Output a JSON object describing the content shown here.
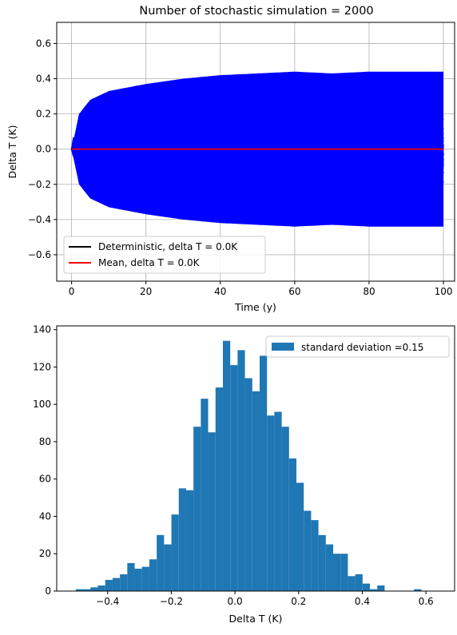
{
  "chart_data": [
    {
      "type": "line",
      "title": "Number of stochastic simulation = 2000",
      "xlabel": "Time (y)",
      "ylabel": "Delta T (K)",
      "xlim": [
        -4,
        103
      ],
      "ylim": [
        -0.75,
        0.72
      ],
      "xticks": [
        0,
        20,
        40,
        60,
        80,
        100
      ],
      "yticks": [
        -0.6,
        -0.4,
        -0.2,
        0.0,
        0.2,
        0.4,
        0.6
      ],
      "xtick_labels": [
        "0",
        "20",
        "40",
        "60",
        "80",
        "100"
      ],
      "ytick_labels": [
        "−0.6",
        "−0.4",
        "−0.2",
        "0.0",
        "0.2",
        "0.4",
        "0.6"
      ],
      "grid": true,
      "legend_position": "lower-left",
      "simulation_count": 2000,
      "stochastic_color": "#0000ff",
      "series": [
        {
          "name": "Deterministic, delta T = 0.0K",
          "color": "#000000",
          "x": [
            0,
            100
          ],
          "values": [
            0.0,
            0.0
          ]
        },
        {
          "name": "Mean, delta T = 0.0K",
          "color": "#ff0000",
          "x": [
            0,
            100
          ],
          "values": [
            0.0,
            0.0
          ]
        }
      ],
      "stochastic_envelope": {
        "x": [
          0,
          2,
          5,
          10,
          20,
          30,
          40,
          50,
          60,
          70,
          80,
          90,
          100
        ],
        "upper": [
          0.0,
          0.2,
          0.28,
          0.33,
          0.37,
          0.4,
          0.42,
          0.43,
          0.44,
          0.43,
          0.44,
          0.44,
          0.44
        ],
        "lower": [
          0.0,
          -0.2,
          -0.28,
          -0.33,
          -0.37,
          -0.4,
          -0.42,
          -0.43,
          -0.44,
          -0.43,
          -0.44,
          -0.44,
          -0.44
        ]
      }
    },
    {
      "type": "bar",
      "subtype": "histogram",
      "xlabel": "Delta T (K)",
      "ylabel": "",
      "xlim": [
        -0.56,
        0.69
      ],
      "ylim": [
        0,
        142
      ],
      "xticks": [
        -0.4,
        -0.2,
        0.0,
        0.2,
        0.4,
        0.6
      ],
      "yticks": [
        0,
        20,
        40,
        60,
        80,
        100,
        120,
        140
      ],
      "xtick_labels": [
        "−0.4",
        "−0.2",
        "0.0",
        "0.2",
        "0.4",
        "0.6"
      ],
      "ytick_labels": [
        "0",
        "20",
        "40",
        "60",
        "80",
        "100",
        "120",
        "140"
      ],
      "bar_color": "#1f77b4",
      "legend_position": "top-right",
      "series": [
        {
          "name": "standard deviation =0.15"
        }
      ],
      "bin_start": -0.5,
      "bin_width": 0.0231,
      "counts": [
        1,
        1,
        2,
        3,
        6,
        7,
        9,
        15,
        12,
        13,
        17,
        30,
        25,
        41,
        55,
        54,
        88,
        103,
        85,
        109,
        134,
        121,
        129,
        114,
        107,
        126,
        94,
        96,
        88,
        71,
        58,
        43,
        38,
        30,
        25,
        20,
        20,
        8,
        9,
        4,
        1,
        3,
        0,
        0,
        0,
        0,
        1,
        0,
        0,
        0,
        0,
        0,
        1
      ]
    }
  ]
}
